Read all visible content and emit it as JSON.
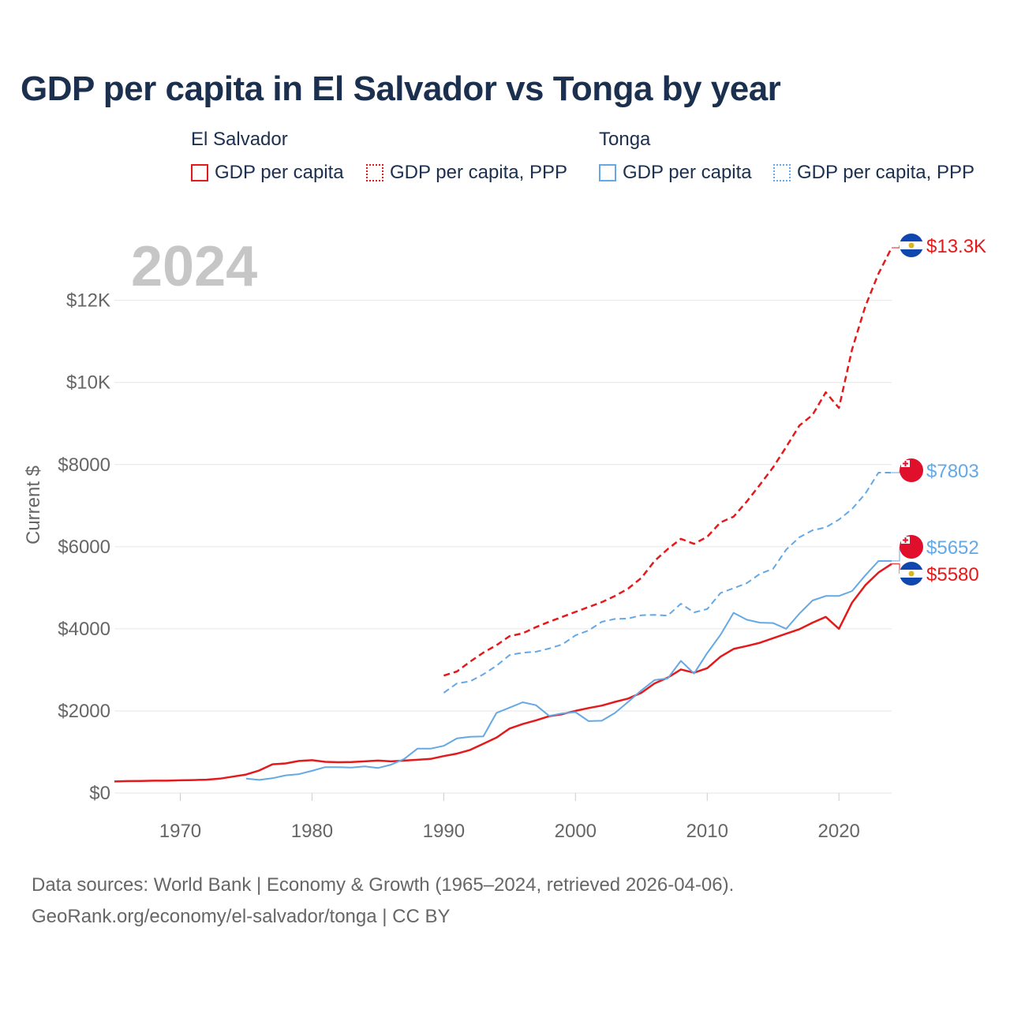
{
  "title": "GDP per capita in El Salvador vs Tonga by year",
  "legend": {
    "groups": [
      {
        "name": "El Salvador",
        "items": [
          "GDP per capita",
          "GDP per capita, PPP"
        ]
      },
      {
        "name": "Tonga",
        "items": [
          "GDP per capita",
          "GDP per capita, PPP"
        ]
      }
    ]
  },
  "footer": {
    "line1": "Data sources: World Bank | Economy & Growth (1965–2024, retrieved 2026-04-06).",
    "line2": "GeoRank.org/economy/el-salvador/tonga | CC BY"
  },
  "chart_data": {
    "type": "line",
    "year_watermark": "2024",
    "ylabel": "Current $",
    "xlim": [
      1965,
      2024
    ],
    "ylim": [
      0,
      13300
    ],
    "x_ticks": [
      1970,
      1980,
      1990,
      2000,
      2010,
      2020
    ],
    "x_tick_labels": [
      "1970",
      "1980",
      "1990",
      "2000",
      "2010",
      "2020"
    ],
    "y_ticks": [
      0,
      2000,
      4000,
      6000,
      8000,
      10000,
      12000
    ],
    "y_tick_labels": [
      "$0",
      "$2000",
      "$4000",
      "$6000",
      "$8000",
      "$10K",
      "$12K"
    ],
    "colors": {
      "el_salvador": "#e31a1c",
      "tonga": "#64a8e6"
    },
    "series": [
      {
        "name": "El Salvador GDP per capita",
        "country": "el_salvador",
        "style": "solid",
        "end_label": "$5580",
        "x": [
          1965,
          1966,
          1967,
          1968,
          1969,
          1970,
          1971,
          1972,
          1973,
          1974,
          1975,
          1976,
          1977,
          1978,
          1979,
          1980,
          1981,
          1982,
          1983,
          1984,
          1985,
          1986,
          1987,
          1988,
          1989,
          1990,
          1991,
          1992,
          1993,
          1994,
          1995,
          1996,
          1997,
          1998,
          1999,
          2000,
          2001,
          2002,
          2003,
          2004,
          2005,
          2006,
          2007,
          2008,
          2009,
          2010,
          2011,
          2012,
          2013,
          2014,
          2015,
          2016,
          2017,
          2018,
          2019,
          2020,
          2021,
          2022,
          2023,
          2024
        ],
        "values": [
          280,
          290,
          295,
          300,
          300,
          310,
          315,
          325,
          350,
          400,
          450,
          550,
          700,
          720,
          780,
          800,
          760,
          750,
          755,
          770,
          790,
          770,
          790,
          810,
          830,
          900,
          960,
          1050,
          1200,
          1350,
          1570,
          1680,
          1770,
          1870,
          1920,
          2000,
          2070,
          2130,
          2220,
          2300,
          2440,
          2670,
          2810,
          3010,
          2930,
          3040,
          3320,
          3510,
          3580,
          3660,
          3770,
          3880,
          3990,
          4150,
          4290,
          4000,
          4640,
          5060,
          5370,
          5580
        ]
      },
      {
        "name": "El Salvador GDP per capita, PPP",
        "country": "el_salvador",
        "style": "dashed",
        "end_label": "$13.3K",
        "x": [
          1990,
          1991,
          1992,
          1993,
          1994,
          1995,
          1996,
          1997,
          1998,
          1999,
          2000,
          2001,
          2002,
          2003,
          2004,
          2005,
          2006,
          2007,
          2008,
          2009,
          2010,
          2011,
          2012,
          2013,
          2014,
          2015,
          2016,
          2017,
          2018,
          2019,
          2020,
          2021,
          2022,
          2023,
          2024
        ],
        "values": [
          2860,
          2960,
          3200,
          3420,
          3600,
          3820,
          3890,
          4040,
          4170,
          4290,
          4410,
          4530,
          4650,
          4800,
          4980,
          5240,
          5650,
          5940,
          6190,
          6070,
          6240,
          6590,
          6730,
          7100,
          7510,
          7930,
          8430,
          8950,
          9210,
          9760,
          9380,
          10810,
          11850,
          12650,
          13280
        ]
      },
      {
        "name": "Tonga GDP per capita",
        "country": "tonga",
        "style": "solid",
        "end_label": "$5652",
        "x": [
          1975,
          1976,
          1977,
          1978,
          1979,
          1980,
          1981,
          1982,
          1983,
          1984,
          1985,
          1986,
          1987,
          1988,
          1989,
          1990,
          1991,
          1992,
          1993,
          1994,
          1995,
          1996,
          1997,
          1998,
          1999,
          2000,
          2001,
          2002,
          2003,
          2004,
          2005,
          2006,
          2007,
          2008,
          2009,
          2010,
          2011,
          2012,
          2013,
          2014,
          2015,
          2016,
          2017,
          2018,
          2019,
          2020,
          2021,
          2022,
          2023,
          2024
        ],
        "values": [
          350,
          320,
          360,
          430,
          460,
          540,
          630,
          630,
          620,
          650,
          610,
          690,
          830,
          1080,
          1080,
          1150,
          1330,
          1370,
          1380,
          1950,
          2080,
          2210,
          2140,
          1880,
          1940,
          1970,
          1750,
          1760,
          1950,
          2220,
          2500,
          2750,
          2790,
          3220,
          2910,
          3410,
          3850,
          4390,
          4220,
          4150,
          4140,
          4000,
          4370,
          4690,
          4800,
          4800,
          4920,
          5300,
          5650,
          5652
        ]
      },
      {
        "name": "Tonga GDP per capita, PPP",
        "country": "tonga",
        "style": "dashed",
        "end_label": "$7803",
        "x": [
          1990,
          1991,
          1992,
          1993,
          1994,
          1995,
          1996,
          1997,
          1998,
          1999,
          2000,
          2001,
          2002,
          2003,
          2004,
          2005,
          2006,
          2007,
          2008,
          2009,
          2010,
          2011,
          2012,
          2013,
          2014,
          2015,
          2016,
          2017,
          2018,
          2019,
          2020,
          2021,
          2022,
          2023,
          2024
        ],
        "values": [
          2440,
          2670,
          2720,
          2890,
          3100,
          3360,
          3420,
          3440,
          3520,
          3620,
          3840,
          3960,
          4170,
          4240,
          4250,
          4330,
          4340,
          4320,
          4610,
          4400,
          4480,
          4870,
          4990,
          5110,
          5340,
          5460,
          5930,
          6230,
          6400,
          6470,
          6660,
          6920,
          7290,
          7803,
          7803
        ]
      }
    ]
  }
}
